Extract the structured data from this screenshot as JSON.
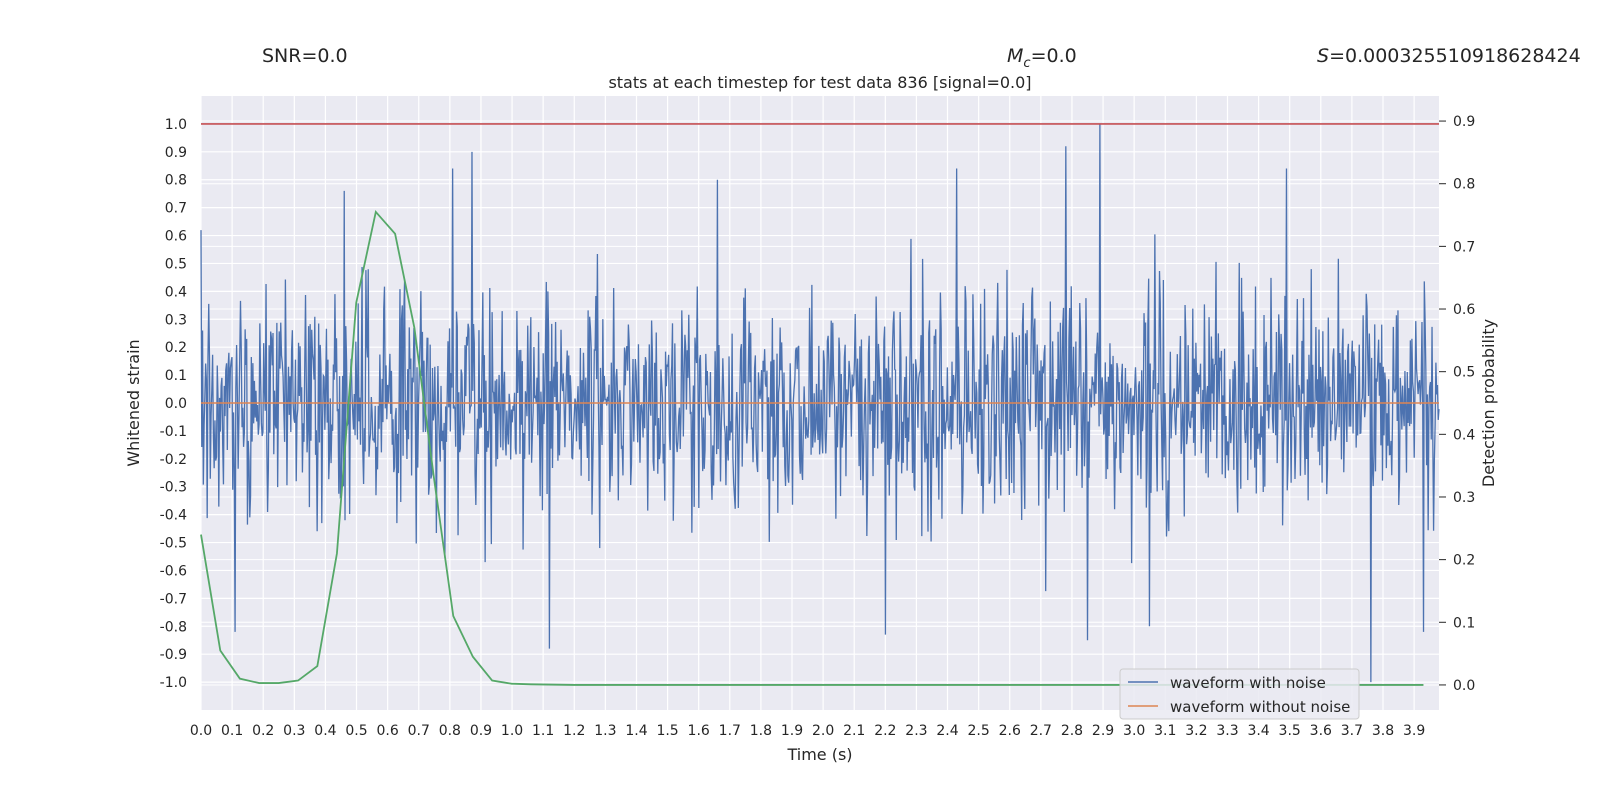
{
  "header": {
    "snr": "SNR=0.0",
    "mc_symbol": "M",
    "mc_sub": "c",
    "mc_value": "=0.0",
    "s_symbol": "S",
    "s_value": "=0.000325510918628424"
  },
  "chart_data": {
    "type": "line",
    "title": "stats at each timestep for test data 836 [signal=0.0]",
    "xlabel": "Time (s)",
    "ylabel": "Whitened strain",
    "y2label": "Detection probability",
    "xlim": [
      0.0,
      3.98
    ],
    "ylim": [
      -1.1,
      1.1
    ],
    "y2lim": [
      -0.04,
      0.94
    ],
    "grid": true,
    "legend_position": "bottom-right",
    "x_ticks": [
      "0.0",
      "0.1",
      "0.2",
      "0.3",
      "0.4",
      "0.5",
      "0.6",
      "0.7",
      "0.8",
      "0.9",
      "1.0",
      "1.1",
      "1.2",
      "1.3",
      "1.4",
      "1.5",
      "1.6",
      "1.7",
      "1.8",
      "1.9",
      "2.0",
      "2.1",
      "2.2",
      "2.3",
      "2.4",
      "2.5",
      "2.6",
      "2.7",
      "2.8",
      "2.9",
      "3.0",
      "3.1",
      "3.2",
      "3.3",
      "3.4",
      "3.5",
      "3.6",
      "3.7",
      "3.8",
      "3.9"
    ],
    "y_ticks": [
      "1.0",
      "0.9",
      "0.8",
      "0.7",
      "0.6",
      "0.5",
      "0.4",
      "0.3",
      "0.2",
      "0.1",
      "0.0",
      "-0.1",
      "-0.2",
      "-0.3",
      "-0.4",
      "-0.5",
      "-0.6",
      "-0.7",
      "-0.8",
      "-0.9",
      "-1.0"
    ],
    "y2_ticks": [
      "0.9",
      "0.8",
      "0.7",
      "0.6",
      "0.5",
      "0.4",
      "0.3",
      "0.2",
      "0.1",
      "0.0"
    ],
    "threshold": {
      "value": 1.0,
      "color": "#c44e52"
    },
    "series": [
      {
        "name": "waveform with noise",
        "color": "#4c72b0",
        "axis": "left",
        "sample_count": 1600,
        "noise_std": 0.2,
        "peaks": [
          [
            2.89,
            1.0
          ],
          [
            0.87,
            0.9
          ],
          [
            0.81,
            0.84
          ],
          [
            2.78,
            0.92
          ],
          [
            1.66,
            0.8
          ],
          [
            3.49,
            0.84
          ],
          [
            0.46,
            0.76
          ],
          [
            2.43,
            0.84
          ],
          [
            3.76,
            -1.0
          ],
          [
            2.85,
            -0.85
          ],
          [
            1.12,
            -0.88
          ],
          [
            0.11,
            -0.82
          ],
          [
            2.2,
            -0.83
          ],
          [
            3.05,
            -0.8
          ],
          [
            3.93,
            -0.82
          ]
        ]
      },
      {
        "name": "waveform without noise",
        "color": "#dd8452",
        "axis": "left",
        "x": [
          0.0,
          3.98
        ],
        "y": [
          0.0,
          0.0
        ]
      },
      {
        "name": "Detection probability",
        "color": "#55a868",
        "axis": "right",
        "x": [
          0.0,
          0.062,
          0.125,
          0.187,
          0.25,
          0.312,
          0.374,
          0.437,
          0.499,
          0.562,
          0.624,
          0.686,
          0.749,
          0.811,
          0.874,
          0.936,
          0.998,
          1.06,
          1.2,
          1.5,
          2.0,
          2.5,
          3.0,
          3.5,
          3.93
        ],
        "y": [
          0.24,
          0.055,
          0.01,
          0.003,
          0.003,
          0.007,
          0.03,
          0.21,
          0.61,
          0.755,
          0.72,
          0.57,
          0.33,
          0.11,
          0.045,
          0.007,
          0.002,
          0.001,
          0.0,
          0.0,
          0.0,
          0.0,
          0.0,
          0.0,
          0.0
        ]
      }
    ]
  }
}
